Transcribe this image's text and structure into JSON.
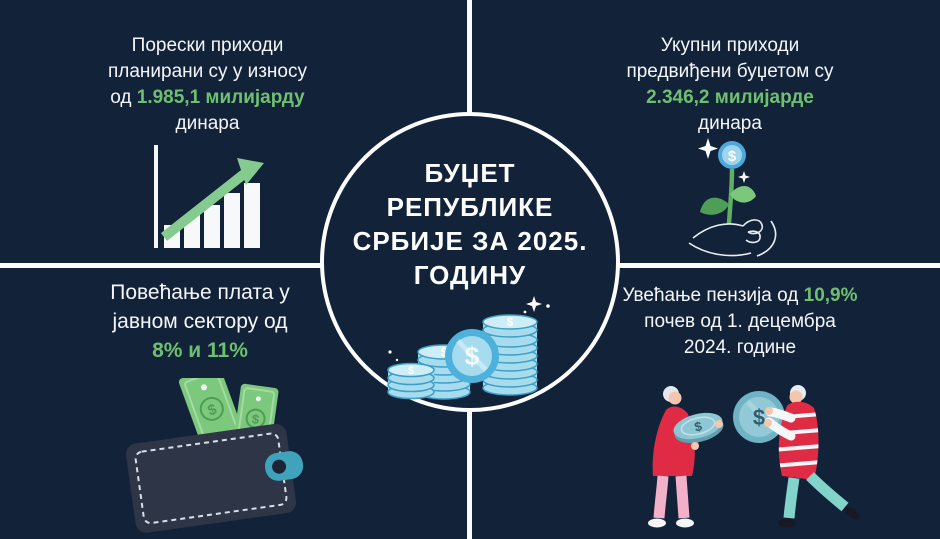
{
  "meta": {
    "language": "sr-Cyrl",
    "type": "budget-infographic"
  },
  "theme": {
    "background": "#122339",
    "text_color": "#f4f6f9",
    "accent_green": "#6fbf70",
    "divider_white": "#fdfdfd",
    "coin_ring_blue": "#4db1dc",
    "coin_face_blue": "#a6dcee",
    "wallet_teal": "#3fa3bb",
    "bill_green": "#7cc87d",
    "person_red": "#df2b44",
    "pants_pink": "#f3b1c9",
    "pants_teal": "#82d4cb"
  },
  "icons": {
    "dollar": "$"
  },
  "center": {
    "illustration": "coin-stacks",
    "title_lines": [
      [
        {
          "t": "БУЏЕТ"
        }
      ],
      [
        {
          "t": "РЕПУБЛИКЕ"
        }
      ],
      [
        {
          "t": "СРБИЈЕ ЗА 2025."
        }
      ],
      [
        {
          "t": "ГОДИНУ"
        }
      ]
    ]
  },
  "quadrants": [
    {
      "id": "tax-revenue",
      "icon": "bar-chart-growth",
      "lines": [
        [
          {
            "t": "Порески приходи"
          }
        ],
        [
          {
            "t": "планирани су у износу"
          }
        ],
        [
          {
            "t": "од "
          },
          {
            "t": "1.985,1 милијарду",
            "h": true
          }
        ],
        [
          {
            "t": "динара"
          }
        ]
      ]
    },
    {
      "id": "total-revenue",
      "icon": "plant-coin-hand",
      "lines": [
        [
          {
            "t": "Укупни приходи"
          }
        ],
        [
          {
            "t": "предвиђени буџетом су"
          }
        ],
        [
          {
            "t": "2.346,2 милијарде",
            "h": true
          }
        ],
        [
          {
            "t": "динара"
          }
        ]
      ]
    },
    {
      "id": "salary-increase",
      "icon": "wallet-cash",
      "lines": [
        [
          {
            "t": "Повећање плата у"
          }
        ],
        [
          {
            "t": "јавном сектору од"
          }
        ],
        [
          {
            "t": "8% и 11%",
            "h": true
          }
        ]
      ]
    },
    {
      "id": "pension-increase",
      "icon": "pensioners-coins",
      "lines": [
        [
          {
            "t": "Увећање пензија од "
          },
          {
            "t": "10,9%",
            "h": true
          }
        ],
        [
          {
            "t": "почев од 1. децембра"
          }
        ],
        [
          {
            "t": "2024. године"
          }
        ]
      ]
    }
  ]
}
